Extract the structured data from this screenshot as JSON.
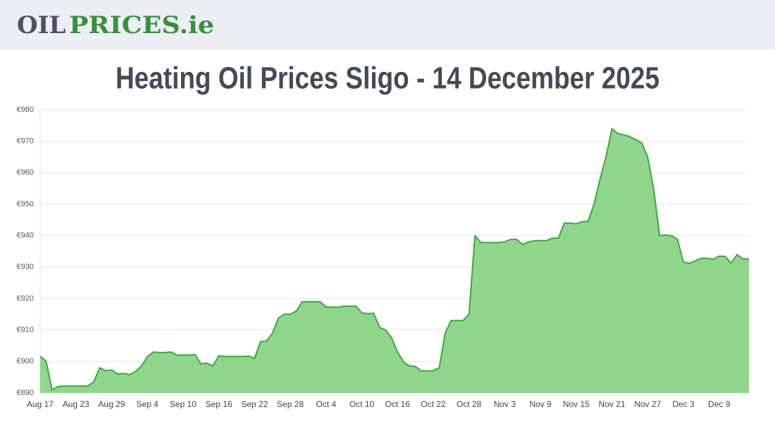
{
  "logo": {
    "part1": "OIL",
    "part2": "PRICES.ie"
  },
  "chart_data": {
    "type": "area",
    "title": "Heating Oil Prices Sligo - 14 December 2025",
    "categories": [
      "Aug 17",
      null,
      null,
      null,
      null,
      null,
      "Aug 23",
      null,
      null,
      null,
      null,
      null,
      "Aug 29",
      null,
      null,
      null,
      null,
      null,
      "Sep 4",
      null,
      null,
      null,
      null,
      null,
      "Sep 10",
      null,
      null,
      null,
      null,
      null,
      "Sep 16",
      null,
      null,
      null,
      null,
      null,
      "Sep 22",
      null,
      null,
      null,
      null,
      null,
      "Sep 28",
      null,
      null,
      null,
      null,
      null,
      "Oct 4",
      null,
      null,
      null,
      null,
      null,
      "Oct 10",
      null,
      null,
      null,
      null,
      null,
      "Oct 16",
      null,
      null,
      null,
      null,
      null,
      "Oct 22",
      null,
      null,
      null,
      null,
      null,
      "Oct 28",
      null,
      null,
      null,
      null,
      null,
      "Nov 3",
      null,
      null,
      null,
      null,
      null,
      "Nov 9",
      null,
      null,
      null,
      null,
      null,
      "Nov 15",
      null,
      null,
      null,
      null,
      null,
      "Nov 21",
      null,
      null,
      null,
      null,
      null,
      "Nov 27",
      null,
      null,
      null,
      null,
      null,
      "Dec 3",
      null,
      null,
      null,
      null,
      null,
      "Dec 9",
      null,
      null,
      null,
      null,
      null
    ],
    "series": [
      {
        "color": "#3aaa35",
        "values": [
          901.6,
          900,
          891,
          892,
          892.2,
          892.2,
          892.2,
          892.2,
          892.2,
          893.5,
          898,
          897,
          897.3,
          896,
          896.2,
          895.8,
          896.8,
          898.5,
          901.5,
          903,
          902.8,
          902.8,
          903,
          902,
          902,
          902,
          902.2,
          899.2,
          899.5,
          898.5,
          901.8,
          901.6,
          901.6,
          901.6,
          901.6,
          901.7,
          901,
          906.3,
          906.5,
          909,
          913.8,
          915,
          915,
          916,
          919,
          919,
          919,
          919,
          917.3,
          917.3,
          917.2,
          917.6,
          917.6,
          917.6,
          915.4,
          915.2,
          915.3,
          910.8,
          910,
          907.5,
          903,
          899.8,
          898.6,
          898.4,
          897,
          897,
          897,
          898,
          909,
          913,
          913,
          913,
          915,
          940,
          937.8,
          937.8,
          937.8,
          937.8,
          938,
          938.8,
          938.8,
          937.2,
          938,
          938.4,
          938.4,
          938.4,
          939.2,
          939.2,
          944,
          944,
          943.8,
          944.4,
          944.6,
          950,
          958,
          965,
          974,
          972.5,
          972,
          971.5,
          970.5,
          969.5,
          965,
          955,
          940,
          940.2,
          940,
          938.8,
          931.6,
          931.2,
          932,
          932.8,
          932.8,
          932.5,
          933.5,
          933.4,
          931.2,
          934,
          932.6,
          932.6
        ]
      }
    ],
    "ylim": [
      890,
      980
    ],
    "yticks": [
      {
        "value": 890,
        "label": "€890"
      },
      {
        "value": 900,
        "label": "€900"
      },
      {
        "value": 910,
        "label": "€910"
      },
      {
        "value": 920,
        "label": "€920"
      },
      {
        "value": 930,
        "label": "€930"
      },
      {
        "value": 940,
        "label": "€940"
      },
      {
        "value": 950,
        "label": "€950"
      },
      {
        "value": 960,
        "label": "€960"
      },
      {
        "value": 970,
        "label": "€970"
      },
      {
        "value": 980,
        "label": "€980"
      }
    ],
    "grid": true
  }
}
